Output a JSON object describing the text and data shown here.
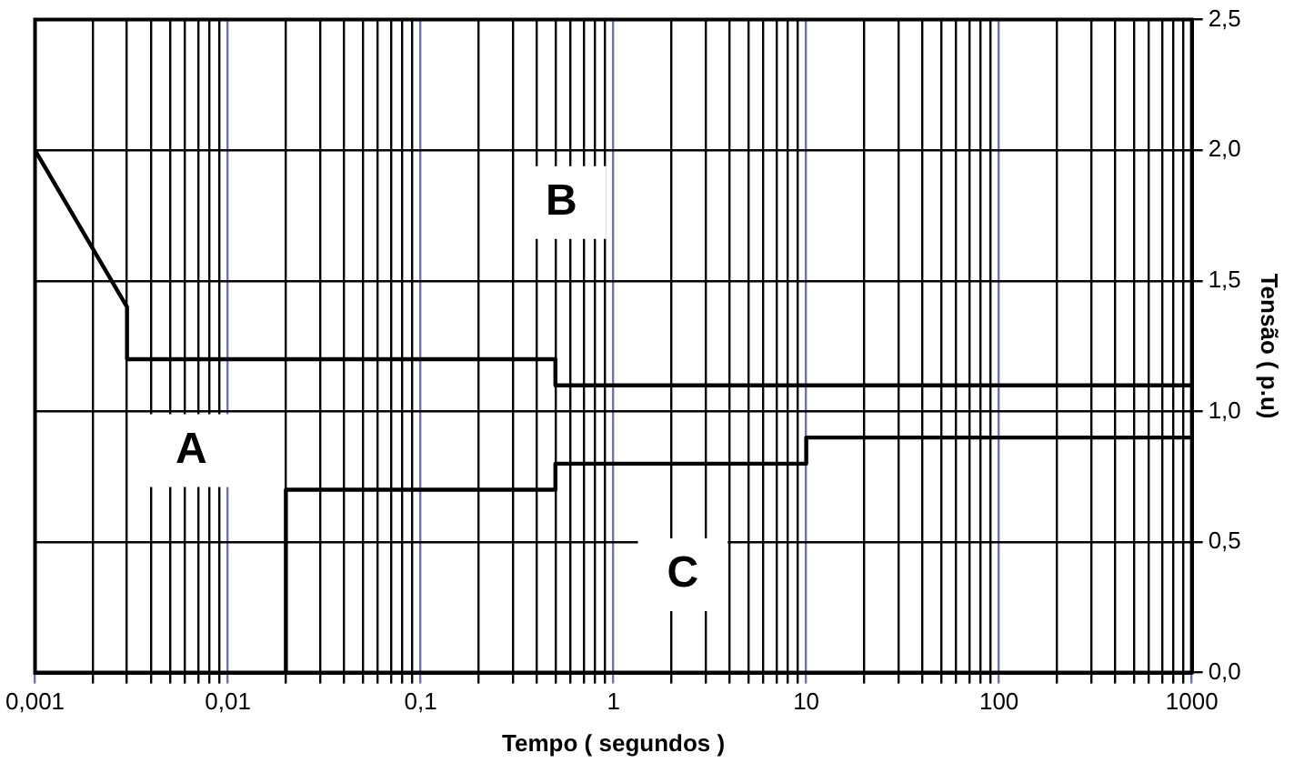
{
  "chart_data": {
    "type": "line",
    "xlabel": "Tempo ( segundos )",
    "ylabel": "Tensão ( p.u)",
    "series": [
      {
        "color": "#000000",
        "x": [
          0.001,
          0.003,
          0.003,
          0.5,
          0.5,
          1000
        ],
        "values": [
          2.0,
          1.4,
          1.2,
          1.2,
          1.1,
          1.1
        ]
      },
      {
        "color": "#000000",
        "x": [
          0.02,
          0.02,
          0.5,
          0.5,
          10,
          10,
          1000
        ],
        "values": [
          0,
          0.7,
          0.7,
          0.8,
          0.8,
          0.9,
          0.9
        ]
      }
    ],
    "log": "x",
    "xlim": [
      0.001,
      1000
    ],
    "xticks": [
      {
        "value": 0.001,
        "label": "0,001"
      },
      {
        "value": 0.01,
        "label": "0,01"
      },
      {
        "value": 0.1,
        "label": "0,1"
      },
      1,
      10,
      100,
      1000
    ],
    "ylim": [
      0,
      2.5
    ],
    "yticks": [
      {
        "value": 0,
        "label": "0,0"
      },
      {
        "value": 0.5,
        "label": "0,5"
      },
      {
        "value": 1,
        "label": "1,0"
      },
      {
        "value": 1.5,
        "label": "1,5"
      },
      {
        "value": 2,
        "label": "2,0"
      },
      {
        "value": 2.5,
        "label": "2,5"
      }
    ],
    "annotations": [
      "A",
      "B",
      "C"
    ],
    "grid": true,
    "legend": false,
    "marker": "none",
    "line_style": "solid"
  }
}
